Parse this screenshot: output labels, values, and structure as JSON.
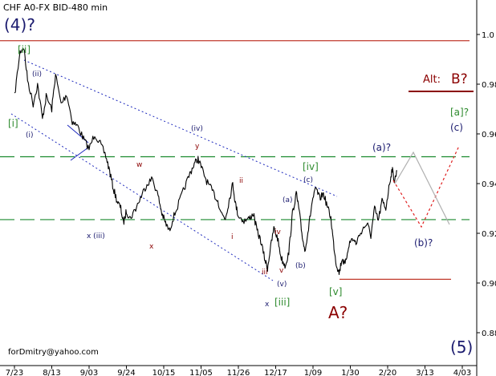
{
  "title": "CHF A0-FX BID-480 min",
  "credit": "forDmitry@yahoo.com",
  "colors": {
    "price": "#000000",
    "resistance": "#c0392b",
    "support_green": "#1a8a2e",
    "channel": "#1f2bbd",
    "wave_dark": "#1a1a6e",
    "wave_red": "#8b0000",
    "green_label": "#2e8b2e",
    "proj_red": "#e02020",
    "proj_gray": "#b0b0b0"
  },
  "chart_data": {
    "type": "line",
    "title": "CHF A0-FX BID-480 min",
    "xlabel": "",
    "ylabel": "",
    "x_ticks": [
      "7/23",
      "8/13",
      "9/03",
      "9/24",
      "10/15",
      "11/05",
      "11/26",
      "12/17",
      "1/09",
      "1/30",
      "2/20",
      "3/13",
      "4/03"
    ],
    "y_ticks": [
      "1.0",
      "0.98",
      "0.96",
      "0.94",
      "0.92",
      "0.90",
      "0.88"
    ],
    "ylim": [
      0.87,
      1.005
    ],
    "grid": false,
    "series": [
      {
        "points": [
          [
            0.0,
            0.975
          ],
          [
            0.15,
            0.993
          ],
          [
            0.25,
            0.995
          ],
          [
            0.35,
            0.982
          ],
          [
            0.5,
            0.972
          ],
          [
            0.62,
            0.98
          ],
          [
            0.75,
            0.966
          ],
          [
            0.85,
            0.975
          ],
          [
            1.0,
            0.97
          ],
          [
            1.1,
            0.984
          ],
          [
            1.25,
            0.972
          ],
          [
            1.4,
            0.976
          ],
          [
            1.55,
            0.965
          ],
          [
            1.7,
            0.963
          ],
          [
            1.85,
            0.958
          ],
          [
            2.0,
            0.954
          ],
          [
            2.15,
            0.96
          ],
          [
            2.3,
            0.956
          ],
          [
            2.45,
            0.951
          ],
          [
            2.55,
            0.945
          ],
          [
            2.65,
            0.938
          ],
          [
            2.75,
            0.933
          ],
          [
            2.85,
            0.93
          ],
          [
            2.92,
            0.924
          ],
          [
            3.0,
            0.929
          ],
          [
            3.1,
            0.926
          ],
          [
            3.25,
            0.93
          ],
          [
            3.4,
            0.935
          ],
          [
            3.55,
            0.94
          ],
          [
            3.7,
            0.942
          ],
          [
            3.85,
            0.935
          ],
          [
            3.95,
            0.928
          ],
          [
            4.05,
            0.924
          ],
          [
            4.15,
            0.921
          ],
          [
            4.25,
            0.926
          ],
          [
            4.4,
            0.932
          ],
          [
            4.55,
            0.938
          ],
          [
            4.7,
            0.944
          ],
          [
            4.82,
            0.948
          ],
          [
            4.92,
            0.95
          ],
          [
            5.02,
            0.946
          ],
          [
            5.15,
            0.941
          ],
          [
            5.3,
            0.937
          ],
          [
            5.45,
            0.933
          ],
          [
            5.55,
            0.928
          ],
          [
            5.65,
            0.926
          ],
          [
            5.75,
            0.933
          ],
          [
            5.85,
            0.94
          ],
          [
            5.92,
            0.932
          ],
          [
            6.0,
            0.927
          ],
          [
            6.15,
            0.925
          ],
          [
            6.3,
            0.926
          ],
          [
            6.4,
            0.928
          ],
          [
            6.5,
            0.921
          ],
          [
            6.6,
            0.917
          ],
          [
            6.7,
            0.91
          ],
          [
            6.78,
            0.906
          ],
          [
            6.85,
            0.913
          ],
          [
            6.95,
            0.922
          ],
          [
            7.05,
            0.918
          ],
          [
            7.15,
            0.91
          ],
          [
            7.25,
            0.907
          ],
          [
            7.35,
            0.912
          ],
          [
            7.45,
            0.928
          ],
          [
            7.55,
            0.936
          ],
          [
            7.62,
            0.93
          ],
          [
            7.7,
            0.92
          ],
          [
            7.78,
            0.913
          ],
          [
            7.88,
            0.922
          ],
          [
            7.98,
            0.933
          ],
          [
            8.08,
            0.938
          ],
          [
            8.18,
            0.934
          ],
          [
            8.28,
            0.936
          ],
          [
            8.38,
            0.931
          ],
          [
            8.48,
            0.926
          ],
          [
            8.55,
            0.916
          ],
          [
            8.62,
            0.908
          ],
          [
            8.7,
            0.904
          ],
          [
            8.78,
            0.91
          ],
          [
            8.86,
            0.907
          ],
          [
            8.95,
            0.915
          ],
          [
            9.05,
            0.918
          ],
          [
            9.15,
            0.916
          ],
          [
            9.3,
            0.921
          ],
          [
            9.45,
            0.924
          ],
          [
            9.55,
            0.919
          ],
          [
            9.65,
            0.93
          ],
          [
            9.75,
            0.925
          ],
          [
            9.85,
            0.933
          ],
          [
            9.95,
            0.93
          ],
          [
            10.05,
            0.94
          ],
          [
            10.12,
            0.946
          ],
          [
            10.18,
            0.941
          ],
          [
            10.25,
            0.945
          ]
        ]
      }
    ],
    "annotations": [
      {
        "text": "(4)?",
        "color": "#1a1a6e"
      },
      {
        "text": "[ii]",
        "color": "#2e8b2e"
      },
      {
        "text": "(ii)",
        "color": "#1a1a6e"
      },
      {
        "text": "[i]",
        "color": "#2e8b2e"
      },
      {
        "text": "(i)",
        "color": "#1a1a6e"
      },
      {
        "text": "(iv)",
        "color": "#1a1a6e"
      },
      {
        "text": "y",
        "color": "#8b0000"
      },
      {
        "text": "w",
        "color": "#8b0000"
      },
      {
        "text": "x (iii)",
        "color": "#1a1a6e"
      },
      {
        "text": "x",
        "color": "#8b0000"
      },
      {
        "text": "ii",
        "color": "#8b0000"
      },
      {
        "text": "i",
        "color": "#8b0000"
      },
      {
        "text": "iii",
        "color": "#8b0000"
      },
      {
        "text": "iv",
        "color": "#8b0000"
      },
      {
        "text": "v",
        "color": "#8b0000"
      },
      {
        "text": "(v)",
        "color": "#1a1a6e"
      },
      {
        "text": "x",
        "color": "#1a1a6e"
      },
      {
        "text": "[iii]",
        "color": "#2e8b2e"
      },
      {
        "text": "(a)",
        "color": "#1a1a6e"
      },
      {
        "text": "(b)",
        "color": "#1a1a6e"
      },
      {
        "text": "(c)",
        "color": "#1a1a6e"
      },
      {
        "text": "[iv]",
        "color": "#2e8b2e"
      },
      {
        "text": "[v]",
        "color": "#2e8b2e"
      },
      {
        "text": "A?",
        "color": "#8b0000"
      },
      {
        "text": "(a)?",
        "color": "#1a1a6e"
      },
      {
        "text": "(b)?",
        "color": "#1a1a6e"
      },
      {
        "text": "(c)",
        "color": "#1a1a6e"
      },
      {
        "text": "[a]?",
        "color": "#2e8b2e"
      },
      {
        "text": "Alt:",
        "color": "#8b0000"
      },
      {
        "text": "B?",
        "color": "#8b0000"
      },
      {
        "text": "(5)",
        "color": "#1a1a6e"
      }
    ]
  }
}
